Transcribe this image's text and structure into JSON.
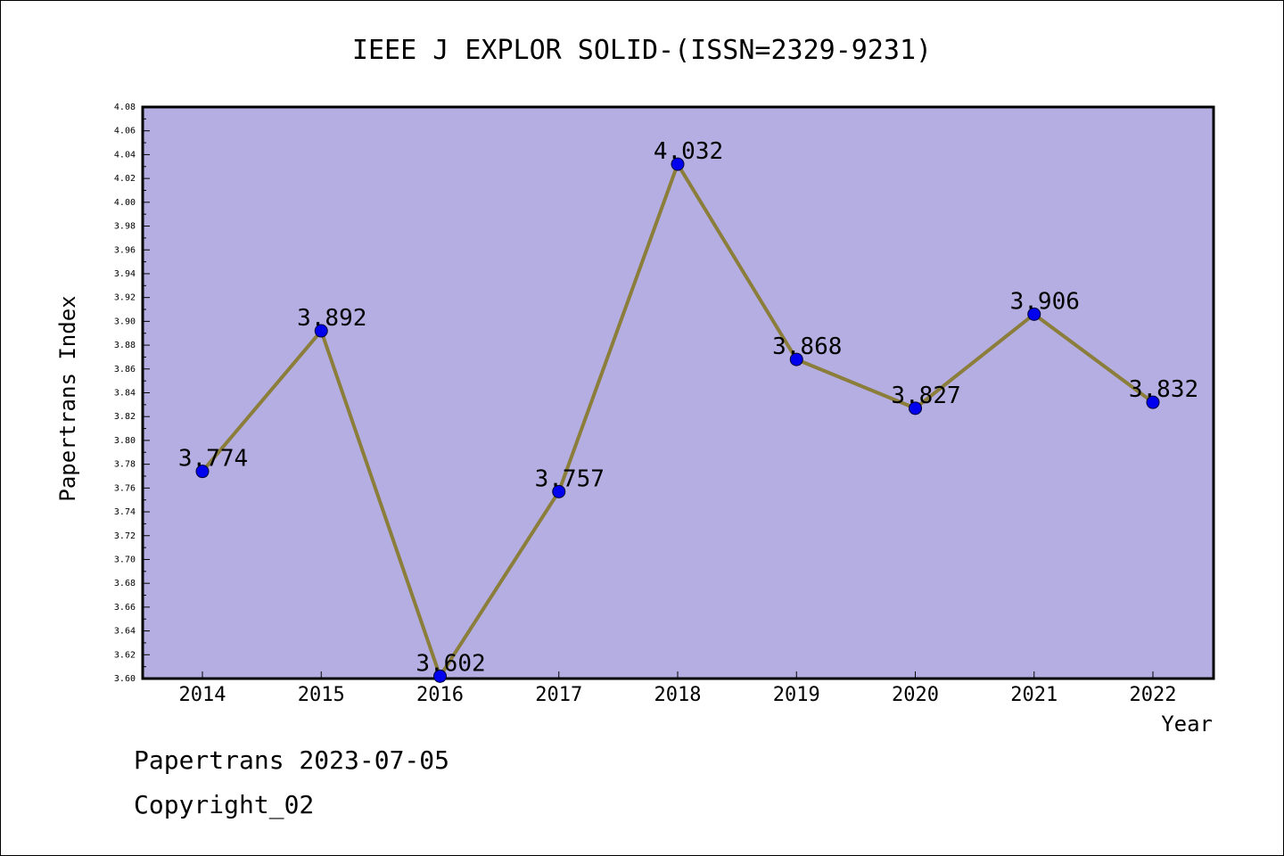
{
  "chart_data": {
    "type": "line",
    "title": "IEEE J EXPLOR SOLID-(ISSN=2329-9231)",
    "xlabel": "Year",
    "ylabel": "Papertrans Index",
    "categories": [
      "2014",
      "2015",
      "2016",
      "2017",
      "2018",
      "2019",
      "2020",
      "2021",
      "2022"
    ],
    "values": [
      3.774,
      3.892,
      3.602,
      3.757,
      4.032,
      3.868,
      3.827,
      3.906,
      3.832
    ],
    "data_labels": [
      "3.774",
      "3.892",
      "3.602",
      "3.757",
      "4.032",
      "3.868",
      "3.827",
      "3.906",
      "3.832"
    ],
    "ylim": [
      3.6,
      4.08
    ],
    "yticks": [
      "3.60",
      "3.62",
      "3.64",
      "3.66",
      "3.68",
      "3.70",
      "3.72",
      "3.74",
      "3.76",
      "3.78",
      "3.80",
      "3.82",
      "3.84",
      "3.86",
      "3.88",
      "3.90",
      "3.92",
      "3.94",
      "3.96",
      "3.98",
      "4.00",
      "4.02",
      "4.04",
      "4.06",
      "4.08"
    ],
    "grid": false,
    "colors": {
      "plot_background": "#b5aee2",
      "line": "#8b7d3a",
      "marker": "#0000ee"
    }
  },
  "footer": {
    "line1": "Papertrans 2023-07-05",
    "line2": "Copyright_02"
  }
}
